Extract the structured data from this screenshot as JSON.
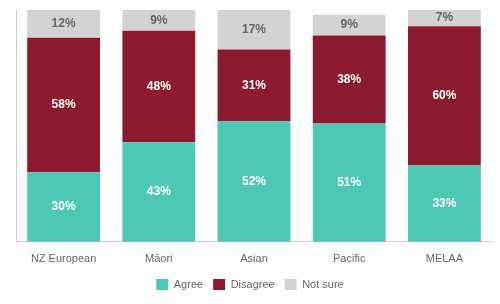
{
  "chart_data": {
    "type": "bar",
    "stacked": true,
    "categories": [
      "NZ European",
      "Māori",
      "Asian",
      "Pacific",
      "MELAA"
    ],
    "series": [
      {
        "name": "Agree",
        "color": "#4DC8B4",
        "values": [
          30,
          43,
          52,
          51,
          33
        ],
        "value_labels": [
          "30%",
          "43%",
          "52%",
          "51%",
          "33%"
        ]
      },
      {
        "name": "Disagree",
        "color": "#8B1A2E",
        "values": [
          58,
          48,
          31,
          38,
          60
        ],
        "value_labels": [
          "58%",
          "48%",
          "31%",
          "38%",
          "60%"
        ]
      },
      {
        "name": "Not sure",
        "color": "#D3D3D3",
        "values": [
          12,
          9,
          17,
          9,
          7
        ],
        "value_labels": [
          "12%",
          "9%",
          "17%",
          "9%",
          "7%"
        ]
      }
    ],
    "ylim": [
      0,
      100
    ],
    "grid": false,
    "legend": "bottom",
    "data_labels": true,
    "tick_labels": "x"
  }
}
